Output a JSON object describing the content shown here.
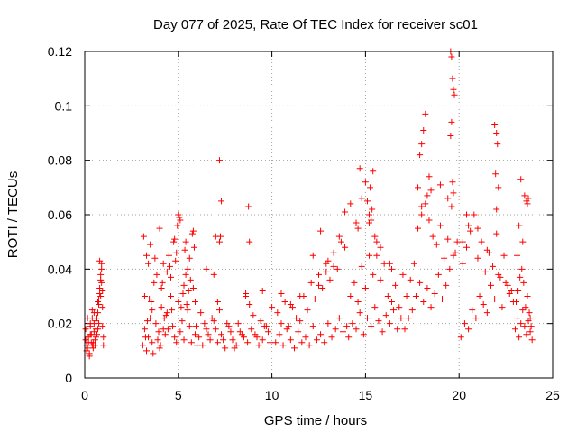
{
  "chart_data": {
    "type": "scatter",
    "title": "Day 077 of 2025, Rate Of TEC Index for receiver sc01",
    "xlabel": "GPS time / hours",
    "ylabel": "ROTI / TECUs",
    "xlim": [
      0,
      25
    ],
    "ylim": [
      0,
      0.12
    ],
    "xticks": [
      0,
      5,
      10,
      15,
      20,
      25
    ],
    "xtick_labels": [
      "0",
      "5",
      "10",
      "15",
      "20",
      "25"
    ],
    "yticks": [
      0,
      0.02,
      0.04,
      0.06,
      0.08,
      0.1,
      0.12
    ],
    "ytick_labels": [
      "0",
      "0.02",
      "0.04",
      "0.06",
      "0.08",
      "0.1",
      "0.12"
    ],
    "grid": true,
    "marker": "plus",
    "color": "#ff0000",
    "series": [
      {
        "name": "sc01",
        "x": [
          0.05,
          0.1,
          0.15,
          0.2,
          0.25,
          0.3,
          0.35,
          0.4,
          0.45,
          0.5,
          0.55,
          0.6,
          0.65,
          0.7,
          0.75,
          0.8,
          0.85,
          0.9,
          0.95,
          1.0,
          0.1,
          0.2,
          0.3,
          0.4,
          0.5,
          0.6,
          0.7,
          0.8,
          0.9,
          1.0,
          0.05,
          0.15,
          0.25,
          0.35,
          0.45,
          0.55,
          0.65,
          0.75,
          0.85,
          0.95,
          0.3,
          0.5,
          0.7,
          0.9,
          0.8,
          0.85,
          0.75,
          0.95,
          0.6,
          0.4,
          3.1,
          3.2,
          3.3,
          3.4,
          3.5,
          3.6,
          3.7,
          3.8,
          3.9,
          4.0,
          4.1,
          4.2,
          4.3,
          4.4,
          4.5,
          4.6,
          4.7,
          4.8,
          4.9,
          5.0,
          5.1,
          5.2,
          5.3,
          5.4,
          5.5,
          5.6,
          5.7,
          5.8,
          5.9,
          6.0,
          3.15,
          3.35,
          3.55,
          3.75,
          3.95,
          4.15,
          4.35,
          4.55,
          4.75,
          4.95,
          5.15,
          5.35,
          5.55,
          5.75,
          5.95,
          3.25,
          3.45,
          3.65,
          3.85,
          4.05,
          4.25,
          4.45,
          4.65,
          4.85,
          5.05,
          5.25,
          5.45,
          5.65,
          5.85,
          3.3,
          3.5,
          4.0,
          4.4,
          4.8,
          5.0,
          5.3,
          5.6,
          5.9,
          3.2,
          3.6,
          4.2,
          4.6,
          5.1,
          5.5,
          5.8,
          4.1,
          4.9,
          5.4,
          3.4,
          6.1,
          6.3,
          6.5,
          6.7,
          6.9,
          7.1,
          7.3,
          7.5,
          7.7,
          7.9,
          8.1,
          8.3,
          8.5,
          8.7,
          8.9,
          9.1,
          9.3,
          9.5,
          9.7,
          9.9,
          6.2,
          6.4,
          6.6,
          6.8,
          7.0,
          7.2,
          7.4,
          7.6,
          7.8,
          8.0,
          8.2,
          8.4,
          8.6,
          8.8,
          9.0,
          9.2,
          9.4,
          9.6,
          9.8,
          10.0,
          6.5,
          7.0,
          7.2,
          7.3,
          7.25,
          7.2,
          8.6,
          8.75,
          8.8,
          9.5,
          6.9,
          7.1,
          10.2,
          10.4,
          10.6,
          10.8,
          11.0,
          11.2,
          11.4,
          11.6,
          11.8,
          12.0,
          12.2,
          12.4,
          12.6,
          12.8,
          13.0,
          13.2,
          13.4,
          13.6,
          13.8,
          14.0,
          10.3,
          10.5,
          10.7,
          10.9,
          11.1,
          11.3,
          11.5,
          11.7,
          11.9,
          12.1,
          12.3,
          12.5,
          12.7,
          12.9,
          13.1,
          13.3,
          13.5,
          13.7,
          13.9,
          10.5,
          11.0,
          11.5,
          12.2,
          12.6,
          13.0,
          13.3,
          13.6,
          13.9,
          12.5,
          12.9,
          14.1,
          14.3,
          14.5,
          14.7,
          14.9,
          15.1,
          15.3,
          15.5,
          15.7,
          15.9,
          16.1,
          16.3,
          16.5,
          16.7,
          16.9,
          14.2,
          14.4,
          14.6,
          14.8,
          15.0,
          15.2,
          15.4,
          15.6,
          15.8,
          16.0,
          16.2,
          16.4,
          16.6,
          16.8,
          17.0,
          14.6,
          14.8,
          15.0,
          15.2,
          15.3,
          15.35,
          15.4,
          15.25,
          15.1,
          14.5,
          15.5,
          15.6,
          16.4,
          14.7,
          15.2,
          14.2,
          15.8,
          16.3,
          17.1,
          17.3,
          17.5,
          17.7,
          17.9,
          18.1,
          18.3,
          18.5,
          18.7,
          18.9,
          19.1,
          19.3,
          19.5,
          19.7,
          19.9,
          17.2,
          17.4,
          17.6,
          17.8,
          18.0,
          18.2,
          18.4,
          18.6,
          18.8,
          19.0,
          19.2,
          19.4,
          19.6,
          19.8,
          17.8,
          17.9,
          18.0,
          18.1,
          18.2,
          18.4,
          18.5,
          19.55,
          19.6,
          19.65,
          19.7,
          19.75,
          19.6,
          19.55,
          19.65,
          19.7,
          18.0,
          18.3,
          19.0,
          19.4,
          20.1,
          20.3,
          20.5,
          20.7,
          20.9,
          21.1,
          21.3,
          21.5,
          21.7,
          21.9,
          22.1,
          22.3,
          22.5,
          22.7,
          22.9,
          20.2,
          20.4,
          20.6,
          20.8,
          21.0,
          21.2,
          21.4,
          21.6,
          21.8,
          22.0,
          22.2,
          22.4,
          22.6,
          22.8,
          21.9,
          22.0,
          22.05,
          21.95,
          22.1,
          22.0,
          20.5,
          21.0,
          21.5,
          20.4,
          20.2,
          23.0,
          23.1,
          23.2,
          23.3,
          23.4,
          23.5,
          23.6,
          23.7,
          23.8,
          23.9,
          23.05,
          23.15,
          23.25,
          23.35,
          23.45,
          23.55,
          23.65,
          23.75,
          23.85,
          23.3,
          23.5,
          23.6,
          23.7,
          23.65,
          23.2,
          23.4,
          23.1,
          23.8
        ],
        "y": [
          0.018,
          0.012,
          0.022,
          0.015,
          0.009,
          0.019,
          0.013,
          0.025,
          0.011,
          0.017,
          0.014,
          0.021,
          0.016,
          0.028,
          0.02,
          0.033,
          0.038,
          0.042,
          0.026,
          0.015,
          0.01,
          0.013,
          0.016,
          0.012,
          0.02,
          0.018,
          0.024,
          0.031,
          0.035,
          0.012,
          0.014,
          0.011,
          0.008,
          0.016,
          0.013,
          0.012,
          0.022,
          0.027,
          0.03,
          0.019,
          0.02,
          0.024,
          0.018,
          0.04,
          0.043,
          0.036,
          0.029,
          0.032,
          0.015,
          0.022,
          0.012,
          0.018,
          0.01,
          0.015,
          0.022,
          0.013,
          0.035,
          0.02,
          0.014,
          0.011,
          0.026,
          0.018,
          0.016,
          0.024,
          0.045,
          0.03,
          0.019,
          0.015,
          0.013,
          0.028,
          0.017,
          0.021,
          0.014,
          0.038,
          0.025,
          0.019,
          0.013,
          0.033,
          0.016,
          0.012,
          0.052,
          0.021,
          0.028,
          0.044,
          0.017,
          0.035,
          0.023,
          0.041,
          0.05,
          0.056,
          0.026,
          0.047,
          0.032,
          0.053,
          0.019,
          0.015,
          0.029,
          0.009,
          0.038,
          0.012,
          0.022,
          0.018,
          0.025,
          0.043,
          0.059,
          0.031,
          0.027,
          0.036,
          0.048,
          0.045,
          0.049,
          0.055,
          0.039,
          0.051,
          0.06,
          0.034,
          0.044,
          0.028,
          0.03,
          0.025,
          0.042,
          0.037,
          0.058,
          0.04,
          0.054,
          0.033,
          0.046,
          0.05,
          0.042,
          0.015,
          0.012,
          0.018,
          0.014,
          0.021,
          0.013,
          0.016,
          0.011,
          0.019,
          0.014,
          0.012,
          0.017,
          0.015,
          0.013,
          0.018,
          0.016,
          0.012,
          0.014,
          0.019,
          0.013,
          0.024,
          0.02,
          0.016,
          0.022,
          0.018,
          0.025,
          0.014,
          0.02,
          0.017,
          0.011,
          0.02,
          0.016,
          0.031,
          0.027,
          0.023,
          0.015,
          0.021,
          0.019,
          0.017,
          0.026,
          0.04,
          0.052,
          0.08,
          0.065,
          0.052,
          0.05,
          0.03,
          0.063,
          0.05,
          0.032,
          0.038,
          0.028,
          0.013,
          0.016,
          0.012,
          0.018,
          0.014,
          0.011,
          0.017,
          0.013,
          0.015,
          0.012,
          0.019,
          0.014,
          0.016,
          0.013,
          0.02,
          0.015,
          0.018,
          0.022,
          0.017,
          0.019,
          0.024,
          0.02,
          0.028,
          0.019,
          0.026,
          0.022,
          0.021,
          0.03,
          0.025,
          0.035,
          0.029,
          0.038,
          0.033,
          0.042,
          0.036,
          0.046,
          0.04,
          0.05,
          0.048,
          0.031,
          0.027,
          0.03,
          0.045,
          0.054,
          0.043,
          0.041,
          0.052,
          0.061,
          0.034,
          0.039,
          0.015,
          0.02,
          0.018,
          0.024,
          0.016,
          0.022,
          0.019,
          0.026,
          0.021,
          0.017,
          0.023,
          0.02,
          0.025,
          0.018,
          0.022,
          0.03,
          0.035,
          0.028,
          0.041,
          0.033,
          0.045,
          0.038,
          0.05,
          0.036,
          0.042,
          0.03,
          0.028,
          0.034,
          0.026,
          0.038,
          0.055,
          0.066,
          0.072,
          0.06,
          0.058,
          0.062,
          0.076,
          0.07,
          0.065,
          0.057,
          0.052,
          0.045,
          0.04,
          0.077,
          0.057,
          0.064,
          0.048,
          0.042,
          0.018,
          0.022,
          0.025,
          0.03,
          0.035,
          0.028,
          0.033,
          0.026,
          0.031,
          0.038,
          0.029,
          0.034,
          0.04,
          0.045,
          0.05,
          0.03,
          0.036,
          0.042,
          0.055,
          0.06,
          0.064,
          0.058,
          0.052,
          0.049,
          0.056,
          0.044,
          0.051,
          0.063,
          0.046,
          0.07,
          0.082,
          0.086,
          0.091,
          0.097,
          0.074,
          0.069,
          0.12,
          0.118,
          0.11,
          0.106,
          0.104,
          0.094,
          0.089,
          0.072,
          0.068,
          0.063,
          0.067,
          0.071,
          0.066,
          0.015,
          0.02,
          0.018,
          0.025,
          0.022,
          0.03,
          0.027,
          0.024,
          0.034,
          0.029,
          0.038,
          0.026,
          0.035,
          0.031,
          0.028,
          0.042,
          0.048,
          0.054,
          0.06,
          0.044,
          0.05,
          0.039,
          0.046,
          0.041,
          0.053,
          0.037,
          0.045,
          0.034,
          0.032,
          0.093,
          0.09,
          0.086,
          0.075,
          0.07,
          0.062,
          0.056,
          0.055,
          0.047,
          0.06,
          0.05,
          0.018,
          0.022,
          0.015,
          0.02,
          0.025,
          0.019,
          0.016,
          0.021,
          0.017,
          0.014,
          0.028,
          0.032,
          0.037,
          0.04,
          0.035,
          0.026,
          0.03,
          0.024,
          0.019,
          0.073,
          0.067,
          0.065,
          0.066,
          0.064,
          0.056,
          0.05,
          0.045,
          0.022
        ]
      }
    ]
  }
}
